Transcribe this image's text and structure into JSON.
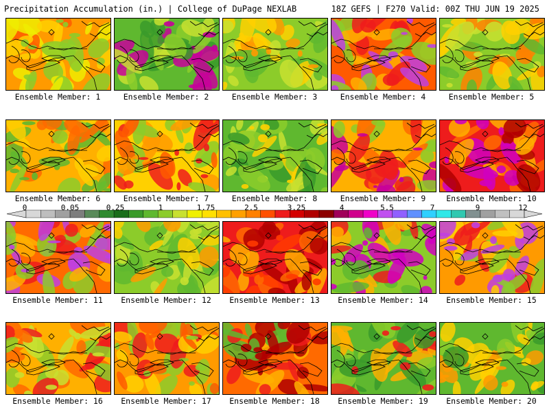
{
  "header": {
    "left": "Precipitation Accumulation (in.) | College of DuPage NEXLAB",
    "right": "18Z GEFS | F270 Valid: 00Z THU JUN 19 2025"
  },
  "colorbar": {
    "labels": [
      "0",
      "0.05",
      "0.25",
      "1",
      "1.75",
      "2.5",
      "3.25",
      "4",
      "5.5",
      "7",
      "9",
      "12"
    ],
    "colors": [
      "#d8d8d8",
      "#bebebe",
      "#a0a0a0",
      "#7e7e7e",
      "#5a8a5a",
      "#2f8a2f",
      "#1a6e1a",
      "#3a9a2a",
      "#5fb82f",
      "#8ccc2a",
      "#c8e030",
      "#f0f000",
      "#ffe000",
      "#ffc000",
      "#ffa000",
      "#ff8000",
      "#ff5000",
      "#ee1c1c",
      "#d40000",
      "#b00000",
      "#8c0000",
      "#a0005a",
      "#d0008c",
      "#f000c8",
      "#c050f0",
      "#9060ff",
      "#6090ff",
      "#30d0ff",
      "#30e8e8",
      "#30c8b0",
      "#809090",
      "#a0a0a0",
      "#c0c0c0",
      "#d8d8d8"
    ]
  },
  "members": [
    {
      "label": "Ensemble Member: 1",
      "palette": [
        "#ff9a00",
        "#ffd000",
        "#f0ec00",
        "#ff5a00",
        "#8ccc2a"
      ]
    },
    {
      "label": "Ensemble Member: 2",
      "palette": [
        "#5fb82f",
        "#8ccc2a",
        "#3a9a2a",
        "#c8e030",
        "#c8009a"
      ]
    },
    {
      "label": "Ensemble Member: 3",
      "palette": [
        "#8ccc2a",
        "#5fb82f",
        "#c8e030",
        "#ffd000",
        "#ff9a00"
      ]
    },
    {
      "label": "Ensemble Member: 4",
      "palette": [
        "#ff5a00",
        "#ffb000",
        "#ee1c1c",
        "#8ccc2a",
        "#c040e0"
      ]
    },
    {
      "label": "Ensemble Member: 5",
      "palette": [
        "#8ccc2a",
        "#ffd000",
        "#5fb82f",
        "#ff8000",
        "#c8e030"
      ]
    },
    {
      "label": "Ensemble Member: 6",
      "palette": [
        "#ffb000",
        "#ffd000",
        "#8ccc2a",
        "#ff6a00",
        "#5fb82f"
      ]
    },
    {
      "label": "Ensemble Member: 7",
      "palette": [
        "#ffd000",
        "#ff9a00",
        "#ff5a00",
        "#8ccc2a",
        "#ee1c1c"
      ]
    },
    {
      "label": "Ensemble Member: 8",
      "palette": [
        "#5fb82f",
        "#3a9a2a",
        "#8ccc2a",
        "#c8e030",
        "#ffd000"
      ]
    },
    {
      "label": "Ensemble Member: 9",
      "palette": [
        "#ffb000",
        "#ff6a00",
        "#ee1c1c",
        "#8ccc2a",
        "#c8009a"
      ]
    },
    {
      "label": "Ensemble Member: 10",
      "palette": [
        "#ee1c1c",
        "#ff6a00",
        "#b00000",
        "#ffb000",
        "#d000c0"
      ]
    },
    {
      "label": "Ensemble Member: 11",
      "palette": [
        "#ff6a00",
        "#ee1c1c",
        "#ffb000",
        "#8ccc2a",
        "#c040e0"
      ]
    },
    {
      "label": "Ensemble Member: 12",
      "palette": [
        "#8ccc2a",
        "#ffd000",
        "#5fb82f",
        "#ff9a00",
        "#c8e030"
      ]
    },
    {
      "label": "Ensemble Member: 13",
      "palette": [
        "#ee1c1c",
        "#ff6a00",
        "#ffb000",
        "#b00000",
        "#ff3a00"
      ]
    },
    {
      "label": "Ensemble Member: 14",
      "palette": [
        "#8ccc2a",
        "#ffb000",
        "#ee1c1c",
        "#5fb82f",
        "#d000c0"
      ]
    },
    {
      "label": "Ensemble Member: 15",
      "palette": [
        "#ff9a00",
        "#ffd000",
        "#ee1c1c",
        "#8ccc2a",
        "#c040e0"
      ]
    },
    {
      "label": "Ensemble Member: 16",
      "palette": [
        "#ffb000",
        "#ff6a00",
        "#ee1c1c",
        "#8ccc2a",
        "#c8e030"
      ]
    },
    {
      "label": "Ensemble Member: 17",
      "palette": [
        "#ff9a00",
        "#ffd000",
        "#ee1c1c",
        "#ff5a00",
        "#8ccc2a"
      ]
    },
    {
      "label": "Ensemble Member: 18",
      "palette": [
        "#ff6a00",
        "#ee1c1c",
        "#ffb000",
        "#5fb82f",
        "#b00000"
      ]
    },
    {
      "label": "Ensemble Member: 19",
      "palette": [
        "#5fb82f",
        "#8ccc2a",
        "#ffb000",
        "#3a9a2a",
        "#ee1c1c"
      ]
    },
    {
      "label": "Ensemble Member: 20",
      "palette": [
        "#5fb82f",
        "#8ccc2a",
        "#ffd000",
        "#3a9a2a",
        "#ff9a00"
      ]
    }
  ]
}
